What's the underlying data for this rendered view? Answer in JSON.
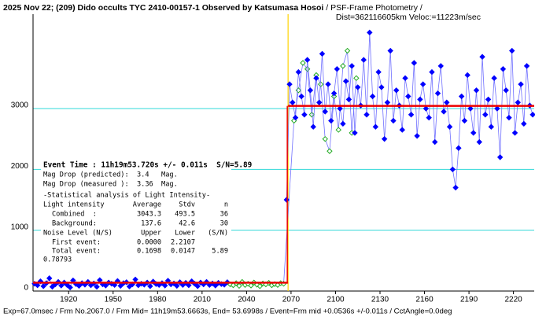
{
  "chart_data": {
    "type": "scatter",
    "title": "2025 Nov 22; (209) Dido occults TYC 2410-00157-1 Observed by Katsumasa Hosoi",
    "subtitle": " / PSF-Frame Photometry /",
    "title_line2": "Dist=362116605km Veloc:=11223m/sec",
    "footer": "Exp=67.0msec / Frm No.2067.0 / Frm Mid= 11h19m53.6663s, End= 53.6998s / Event=Frm mid +0.0536s +/-0.011s / CctAngle=0.0deg",
    "xlim": [
      1896,
      2234
    ],
    "ylim": [
      0,
      4500
    ],
    "xticks": [
      1920,
      1950,
      1980,
      2010,
      2040,
      2070,
      2100,
      2130,
      2160,
      2190,
      2220
    ],
    "yticks": [
      0,
      1000,
      2000,
      3000
    ],
    "grid": true,
    "event_x": 2068,
    "series": [
      {
        "color": "#0000ff",
        "line_color": "#7070ff",
        "filled": true,
        "x": [
          1897,
          1899,
          1901,
          1903,
          1905,
          1907,
          1909,
          1911,
          1913,
          1915,
          1917,
          1919,
          1921,
          1923,
          1925,
          1927,
          1929,
          1931,
          1933,
          1935,
          1937,
          1939,
          1941,
          1943,
          1945,
          1947,
          1949,
          1951,
          1953,
          1955,
          1957,
          1959,
          1961,
          1963,
          1965,
          1967,
          1969,
          1971,
          1973,
          1975,
          1977,
          1979,
          1981,
          1983,
          1985,
          1987,
          1989,
          1991,
          1993,
          1995,
          1997,
          1999,
          2001,
          2003,
          2005,
          2007,
          2009,
          2011,
          2013,
          2015,
          2017,
          2019,
          2021,
          2023,
          2025,
          2027
        ],
        "values": [
          120,
          95,
          160,
          80,
          130,
          210,
          70,
          110,
          150,
          90,
          140,
          100,
          60,
          175,
          115,
          85,
          130,
          105,
          150,
          95,
          125,
          70,
          180,
          110,
          90,
          140,
          120,
          100,
          165,
          85,
          130,
          145,
          75,
          110,
          190,
          95,
          120,
          105,
          140,
          80,
          155,
          115,
          100,
          130,
          90,
          170,
          110,
          125,
          85,
          145,
          100,
          135,
          95,
          160,
          120,
          80,
          140,
          110,
          150,
          100,
          125,
          90,
          135,
          115,
          105,
          145
        ]
      },
      {
        "color": "#22aa22",
        "line_color": "#7070ff",
        "filled": false,
        "x": [
          2029,
          2031,
          2033,
          2035,
          2037,
          2039,
          2041,
          2043,
          2045,
          2047,
          2049,
          2051,
          2053,
          2055,
          2057,
          2059,
          2061,
          2063,
          2065,
          2072,
          2075,
          2078,
          2081,
          2084,
          2087,
          2090,
          2093,
          2096,
          2099,
          2102,
          2105,
          2108,
          2111,
          2114
        ],
        "values": [
          110,
          95,
          130,
          85,
          150,
          100,
          120,
          90,
          140,
          105,
          80,
          125,
          110,
          135,
          95,
          115,
          100,
          130,
          120,
          2800,
          3300,
          3750,
          3650,
          2900,
          3550,
          3400,
          2500,
          2300,
          3200,
          2650,
          3700,
          3950,
          2600,
          3500
        ]
      },
      {
        "color": "#0000ff",
        "line_color": "#7070ff",
        "filled": true,
        "x": [
          2067,
          2069,
          2071,
          2073,
          2075,
          2077,
          2079,
          2081,
          2083,
          2085,
          2087,
          2089,
          2091,
          2093,
          2095,
          2097,
          2099,
          2101,
          2103,
          2105,
          2107,
          2109,
          2111,
          2113,
          2115,
          2117,
          2119,
          2121,
          2123,
          2125,
          2127,
          2129,
          2131,
          2133,
          2135,
          2137,
          2139,
          2141,
          2143,
          2145,
          2147,
          2149,
          2151,
          2153,
          2155,
          2157,
          2159,
          2161,
          2163,
          2165,
          2167,
          2169,
          2171,
          2173,
          2175,
          2177,
          2179,
          2181,
          2183,
          2185,
          2187,
          2189,
          2191,
          2193,
          2195,
          2197,
          2199,
          2201,
          2203,
          2205,
          2207,
          2209,
          2211,
          2213,
          2215,
          2217,
          2219,
          2221,
          2223,
          2225,
          2227,
          2229,
          2231,
          2233
        ],
        "values": [
          1500,
          3400,
          3100,
          2850,
          3600,
          3200,
          2900,
          3800,
          3300,
          2700,
          3500,
          3100,
          3900,
          2950,
          3400,
          2800,
          3250,
          3650,
          3000,
          2750,
          3450,
          3150,
          3700,
          2600,
          3350,
          3050,
          3800,
          2900,
          4250,
          3200,
          2700,
          3600,
          3350,
          2500,
          3100,
          3950,
          2800,
          3300,
          3050,
          2650,
          3500,
          3200,
          2900,
          3750,
          2550,
          3150,
          3400,
          3000,
          2850,
          3600,
          2450,
          3250,
          3700,
          2950,
          3100,
          2700,
          2000,
          1700,
          2350,
          3200,
          2800,
          3550,
          3000,
          2600,
          3300,
          2450,
          3850,
          2900,
          3150,
          2700,
          3500,
          3000,
          2200,
          3650,
          3300,
          2850,
          3950,
          2600,
          3100,
          3400,
          2750,
          3700,
          3050,
          2900
        ]
      }
    ],
    "info": {
      "event_time": "Event Time : 11h19m53.720s +/- 0.011s  S/N=5.89",
      "mag_pred": "Mag Drop (predicted):  3.4   Mag.",
      "mag_meas": "Mag Drop (measured ):  3.36  Mag.",
      "stat_title": "-Statistical analysis of Light Intensity-",
      "header": [
        "Light intensity",
        "Average",
        "Stdv",
        "n"
      ],
      "rows": [
        [
          "Combined  :",
          3043.3,
          493.5,
          36
        ],
        [
          "Background:",
          137.6,
          42.6,
          30
        ]
      ],
      "noise_header": [
        "Noise Level (N/S)",
        "Upper",
        "Lower",
        "(S/N)"
      ],
      "noise_rows": [
        [
          "First event:",
          "0.0000",
          "2.2107"
        ],
        [
          "Total event:",
          "0.1698",
          "0.0147",
          5.89
        ]
      ],
      "extra": "0.78793"
    }
  }
}
